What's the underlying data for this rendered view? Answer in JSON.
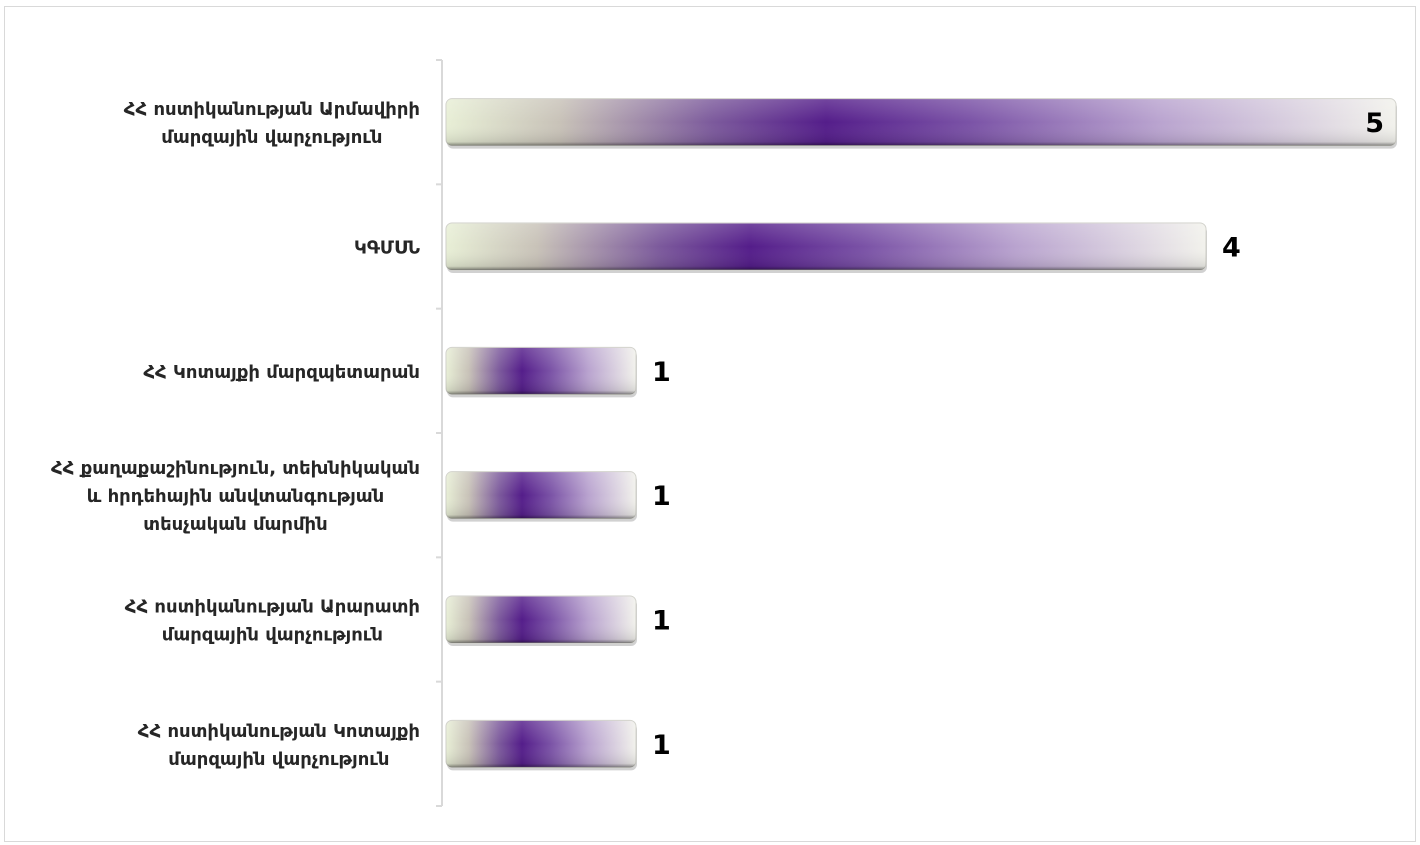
{
  "chart_data": {
    "type": "bar",
    "orientation": "horizontal",
    "categories": [
      [
        "ՀՀ ոստիկանության Արմավիրի",
        "մարզային վարչություն"
      ],
      [
        "ԿԳՄՍՆ"
      ],
      [
        "ՀՀ Կոտայքի մարզպետարան"
      ],
      [
        "ՀՀ քաղաքաշինություն, տեխնիկական",
        "և հրդեհային անվտանգության",
        "տեսչական մարմին"
      ],
      [
        "ՀՀ ոստիկանության Արարատի",
        "մարզային վարչություն"
      ],
      [
        "ՀՀ ոստիկանության Կոտայքի",
        "մարզային վարչություն"
      ]
    ],
    "values": [
      5,
      4,
      1,
      1,
      1,
      1
    ],
    "xlim": [
      0,
      5
    ],
    "grid": false,
    "legend": "none",
    "colors": {
      "bar_edge_light": "#e8efd6",
      "bar_center": "#541d8a",
      "bar_right": "#f2f2ec",
      "axis": "#d9d9d9",
      "frame": "#d9d9d9"
    }
  }
}
